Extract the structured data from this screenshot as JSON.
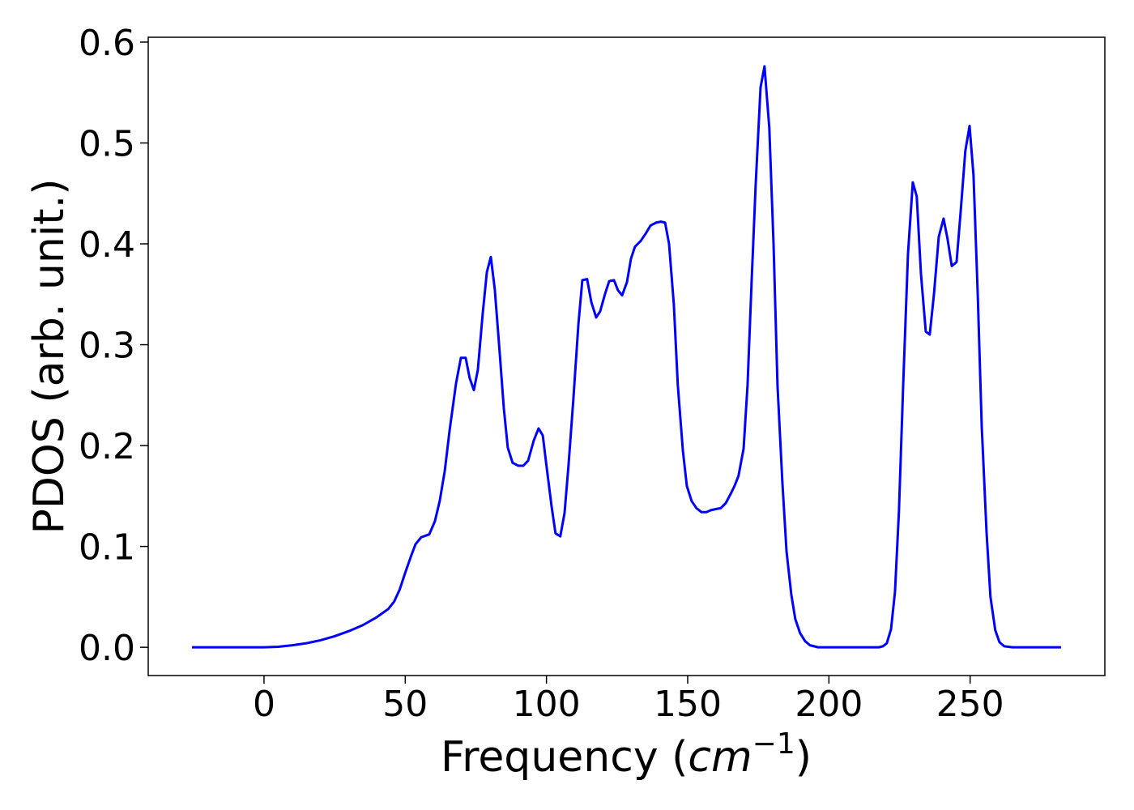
{
  "chart_data": {
    "type": "line",
    "xlabel": [
      "Frequency (",
      "cm",
      "−1",
      ")"
    ],
    "ylabel": "PDOS (arb. unit.)",
    "xlim": [
      -41,
      297.7
    ],
    "ylim": [
      -0.028,
      0.6048
    ],
    "xticks": [
      0,
      50,
      100,
      150,
      200,
      250
    ],
    "yticks": [
      {
        "value": 0,
        "label": "0.0"
      },
      0.1,
      0.2,
      0.3,
      0.4,
      0.5,
      0.6
    ],
    "grid": false,
    "series": [
      {
        "name": "PDOS",
        "color": "#0000ff",
        "x": [
          -25.5,
          0,
          5,
          10,
          15,
          20,
          25,
          30,
          35,
          40,
          44,
          46,
          48,
          50,
          52,
          53.6,
          55.6,
          58.5,
          60.5,
          62.2,
          64,
          65.7,
          68,
          69.7,
          71.4,
          72.8,
          74.3,
          75.7,
          77.4,
          78.9,
          80.3,
          81.7,
          83.5,
          84.9,
          86.3,
          88,
          90,
          91.8,
          93.5,
          95.5,
          97.2,
          98.7,
          100,
          101.8,
          103.2,
          104.9,
          106.4,
          107.8,
          109.5,
          111.3,
          112.7,
          114.4,
          115.9,
          117.6,
          119,
          120.7,
          122.2,
          123.9,
          125.3,
          126.8,
          128.5,
          129.9,
          131.3,
          133.4,
          135.1,
          136.8,
          138.8,
          140.5,
          142,
          143.4,
          145.1,
          146.5,
          148.3,
          149.7,
          151.4,
          153.1,
          154.9,
          156.6,
          158.3,
          160,
          161.7,
          163.5,
          165.2,
          166.6,
          168,
          169.8,
          171.2,
          172.6,
          174.1,
          175.8,
          177.2,
          178.9,
          180.4,
          181.8,
          183.5,
          185,
          186.7,
          188.1,
          189.8,
          191.6,
          193.3,
          196.2,
          217.7,
          219.1,
          220.5,
          222,
          223.4,
          224.8,
          226.3,
          228,
          229.7,
          231.1,
          232.6,
          234.3,
          235.7,
          237.2,
          238.9,
          240.6,
          242,
          243.5,
          245.2,
          246.6,
          248.3,
          249.8,
          251.2,
          252.7,
          254.1,
          255.8,
          257.2,
          258.9,
          260.4,
          262.1,
          265,
          282.2
        ],
        "values": [
          0,
          0,
          0.0005,
          0.002,
          0.004,
          0.007,
          0.011,
          0.016,
          0.022,
          0.03,
          0.038,
          0.045,
          0.057,
          0.074,
          0.09,
          0.102,
          0.109,
          0.112,
          0.125,
          0.145,
          0.175,
          0.215,
          0.262,
          0.287,
          0.287,
          0.267,
          0.255,
          0.275,
          0.33,
          0.372,
          0.387,
          0.355,
          0.29,
          0.237,
          0.198,
          0.183,
          0.18,
          0.18,
          0.185,
          0.205,
          0.217,
          0.21,
          0.18,
          0.14,
          0.113,
          0.11,
          0.133,
          0.18,
          0.245,
          0.32,
          0.364,
          0.365,
          0.342,
          0.327,
          0.333,
          0.35,
          0.363,
          0.364,
          0.354,
          0.349,
          0.362,
          0.385,
          0.397,
          0.403,
          0.41,
          0.418,
          0.421,
          0.422,
          0.421,
          0.4,
          0.34,
          0.26,
          0.195,
          0.16,
          0.145,
          0.138,
          0.134,
          0.134,
          0.136,
          0.137,
          0.138,
          0.143,
          0.152,
          0.16,
          0.17,
          0.197,
          0.26,
          0.36,
          0.46,
          0.555,
          0.576,
          0.515,
          0.4,
          0.26,
          0.165,
          0.095,
          0.052,
          0.028,
          0.014,
          0.006,
          0.002,
          0,
          0,
          0.001,
          0.004,
          0.018,
          0.055,
          0.135,
          0.26,
          0.39,
          0.461,
          0.447,
          0.37,
          0.313,
          0.31,
          0.35,
          0.407,
          0.425,
          0.405,
          0.378,
          0.382,
          0.43,
          0.492,
          0.517,
          0.468,
          0.35,
          0.22,
          0.115,
          0.05,
          0.017,
          0.005,
          0.001,
          0,
          0
        ]
      }
    ]
  }
}
